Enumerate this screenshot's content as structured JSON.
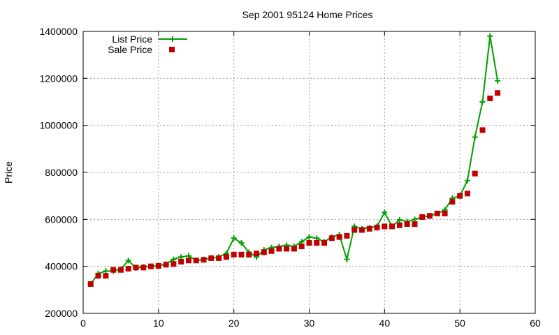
{
  "chart_data": {
    "type": "line",
    "title": "Sep 2001 95124 Home Prices",
    "xlabel": "",
    "ylabel": "Price",
    "xlim": [
      0,
      60
    ],
    "ylim": [
      200000,
      1400000
    ],
    "x_ticks": [
      0,
      10,
      20,
      30,
      40,
      50,
      60
    ],
    "y_ticks": [
      200000,
      400000,
      600000,
      800000,
      1000000,
      1200000,
      1400000
    ],
    "grid": true,
    "legend_position": "top-left",
    "x": [
      1,
      2,
      3,
      4,
      5,
      6,
      7,
      8,
      9,
      10,
      11,
      12,
      13,
      14,
      15,
      16,
      17,
      18,
      19,
      20,
      21,
      22,
      23,
      24,
      25,
      26,
      27,
      28,
      29,
      30,
      31,
      32,
      33,
      34,
      35,
      36,
      37,
      38,
      39,
      40,
      41,
      42,
      43,
      44,
      45,
      46,
      47,
      48,
      49,
      50,
      51,
      52,
      53,
      54,
      55
    ],
    "series": [
      {
        "name": "List Price",
        "style": "line+plus",
        "color": "#00a000",
        "values": [
          325000,
          370000,
          380000,
          380000,
          388000,
          425000,
          393000,
          398000,
          400000,
          403000,
          410000,
          430000,
          440000,
          445000,
          425000,
          430000,
          435000,
          440000,
          455000,
          520000,
          500000,
          460000,
          440000,
          470000,
          480000,
          485000,
          490000,
          485000,
          505000,
          525000,
          520000,
          505000,
          525000,
          535000,
          430000,
          570000,
          560000,
          565000,
          570000,
          630000,
          570000,
          598000,
          590000,
          600000,
          610000,
          615000,
          625000,
          640000,
          690000,
          700000,
          765000,
          950000,
          1100000,
          1380000,
          1190000
        ]
      },
      {
        "name": "Sale Price",
        "style": "points-square",
        "color": "#c00000",
        "values": [
          325000,
          360000,
          360000,
          385000,
          385000,
          390000,
          395000,
          395000,
          400000,
          402000,
          407000,
          410000,
          420000,
          425000,
          425000,
          428000,
          435000,
          435000,
          440000,
          450000,
          450000,
          450000,
          455000,
          460000,
          465000,
          475000,
          475000,
          475000,
          485000,
          500000,
          500000,
          500000,
          520000,
          525000,
          530000,
          555000,
          555000,
          560000,
          565000,
          570000,
          570000,
          575000,
          580000,
          580000,
          610000,
          615000,
          625000,
          625000,
          675000,
          700000,
          710000,
          795000,
          980000,
          1115000,
          1138000
        ]
      }
    ]
  }
}
